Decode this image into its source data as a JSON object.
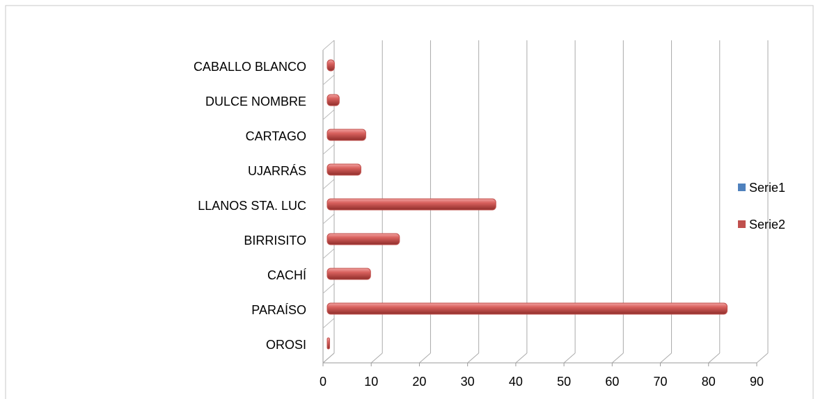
{
  "chart_data": {
    "type": "bar",
    "orientation": "horizontal",
    "categories": [
      "OROSI",
      "PARAÍSO",
      "CACHÍ",
      "BIRRISITO",
      "LLANOS STA. LUC",
      "UJARRÁS",
      "CARTAGO",
      "DULCE NOMBRE",
      "CABALLO BLANCO"
    ],
    "series": [
      {
        "name": "Serie1",
        "color": "#4f81bd",
        "values": [
          0,
          0,
          0,
          0,
          0,
          0,
          0,
          0,
          0
        ]
      },
      {
        "name": "Serie2",
        "color": "#c0504d",
        "values": [
          0.5,
          83,
          9,
          15,
          35,
          7,
          8,
          2.5,
          1.5
        ]
      }
    ],
    "xlim": [
      0,
      90
    ],
    "xticks": [
      0,
      10,
      20,
      30,
      40,
      50,
      60,
      70,
      80,
      90
    ],
    "grid": true,
    "legend": "right"
  }
}
